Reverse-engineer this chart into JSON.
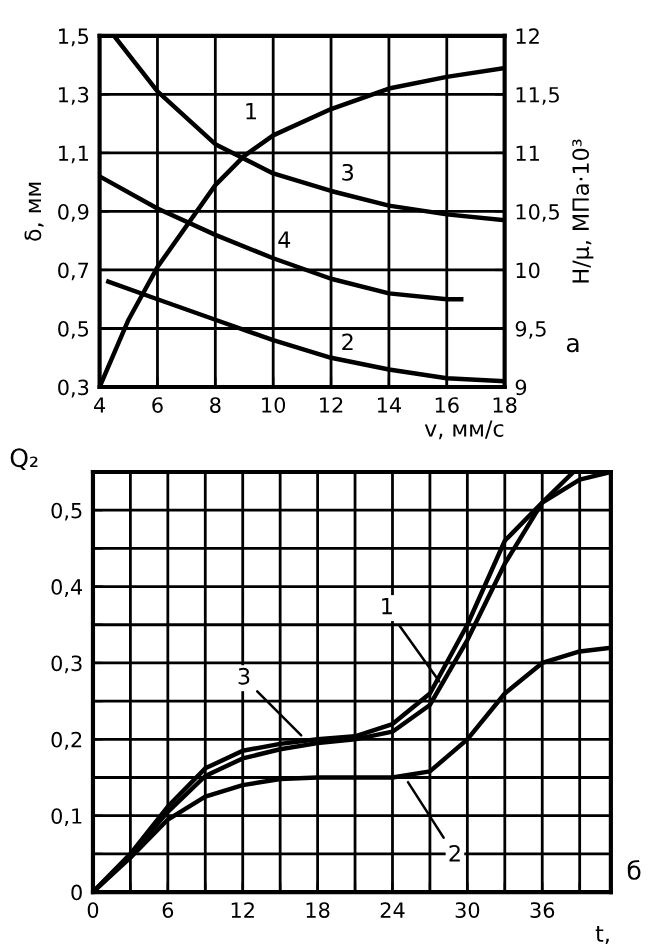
{
  "chart_data": [
    {
      "type": "line",
      "xlabel": "v, мм/с",
      "ylabel": "δ, мм",
      "y2label": "Н/μ, МПа·10³",
      "xlim": [
        4,
        18
      ],
      "xticks": [
        4,
        6,
        8,
        10,
        12,
        14,
        16,
        18
      ],
      "ylim": [
        0.3,
        1.5
      ],
      "yticks": [
        {
          "value": 0.3,
          "label": "0,3"
        },
        {
          "value": 0.5,
          "label": "0,5"
        },
        {
          "value": 0.7,
          "label": "0,7"
        },
        {
          "value": 0.9,
          "label": "0,9"
        },
        {
          "value": 1.1,
          "label": "1,1"
        },
        {
          "value": 1.3,
          "label": "1,3"
        },
        {
          "value": 1.5,
          "label": "1,5"
        }
      ],
      "y2lim": [
        9,
        12
      ],
      "y2ticks": [
        9,
        {
          "value": 9.5,
          "label": "9,5"
        },
        10,
        {
          "value": 10.5,
          "label": "10,5"
        },
        11,
        {
          "value": 11.5,
          "label": "11,5"
        },
        12
      ],
      "grid": true,
      "marker": "none",
      "line_style": "solid",
      "series": [
        {
          "color": "#000000",
          "x": [
            4,
            5,
            6,
            8,
            9,
            10,
            12,
            14,
            16,
            18
          ],
          "values": [
            0.3,
            0.53,
            0.71,
            0.99,
            1.09,
            1.16,
            1.25,
            1.32,
            1.36,
            1.39
          ]
        },
        {
          "color": "#000000",
          "x": [
            4.5,
            6,
            8,
            10,
            12,
            14,
            16,
            18
          ],
          "values": [
            1.5,
            1.31,
            1.13,
            1.03,
            0.97,
            0.92,
            0.89,
            0.87
          ]
        },
        {
          "color": "#000000",
          "x": [
            4,
            6,
            8,
            10,
            12,
            14,
            16,
            16.5
          ],
          "values": [
            1.02,
            0.91,
            0.82,
            0.74,
            0.67,
            0.62,
            0.6,
            0.6
          ]
        },
        {
          "color": "#000000",
          "x": [
            4.3,
            6,
            8,
            10,
            12,
            14,
            16,
            18
          ],
          "values": [
            0.66,
            0.6,
            0.53,
            0.46,
            0.4,
            0.36,
            0.33,
            0.32
          ]
        }
      ],
      "annotations": [
        {
          "text": "1",
          "x": 10,
          "y": 1.16
        },
        {
          "text": "3",
          "x": 12,
          "y": 0.97
        },
        {
          "text": "4",
          "x": 10,
          "y": 0.74
        },
        {
          "text": "2",
          "x": 12,
          "y": 0.4
        },
        "а"
      ]
    },
    {
      "type": "line",
      "xlabel": "t,",
      "ylabel": "Q₂",
      "xlim": [
        0,
        41.5
      ],
      "xticks": [
        0,
        {
          "value": 3,
          "label": null
        },
        6,
        {
          "value": 9,
          "label": null
        },
        12,
        {
          "value": 15,
          "label": null
        },
        18,
        {
          "value": 21,
          "label": null
        },
        24,
        {
          "value": 27,
          "label": null
        },
        30,
        {
          "value": 33,
          "label": null
        },
        36,
        {
          "value": 39,
          "label": null
        }
      ],
      "ylim": [
        0,
        0.55
      ],
      "yticks": [
        0,
        {
          "value": 0.05,
          "label": null
        },
        {
          "value": 0.1,
          "label": "0,1"
        },
        {
          "value": 0.15,
          "label": null
        },
        {
          "value": 0.2,
          "label": "0,2"
        },
        {
          "value": 0.25,
          "label": null
        },
        {
          "value": 0.3,
          "label": "0,3"
        },
        {
          "value": 0.35,
          "label": null
        },
        {
          "value": 0.4,
          "label": "0,4"
        },
        {
          "value": 0.45,
          "label": null
        },
        {
          "value": 0.5,
          "label": "0,5"
        }
      ],
      "grid": true,
      "marker": "none",
      "line_style": "solid",
      "series": [
        {
          "color": "#000000",
          "x": [
            0,
            3,
            6,
            9,
            12,
            15,
            18,
            21,
            24,
            27,
            30,
            33,
            36,
            38.5
          ],
          "values": [
            0,
            0.05,
            0.112,
            0.162,
            0.185,
            0.194,
            0.2,
            0.204,
            0.22,
            0.26,
            0.35,
            0.46,
            0.51,
            0.55
          ]
        },
        {
          "color": "#000000",
          "x": [
            0,
            3,
            6,
            9,
            12,
            15,
            18,
            21,
            24,
            27,
            30,
            33,
            36,
            39,
            41.5
          ],
          "values": [
            0,
            0.048,
            0.105,
            0.152,
            0.175,
            0.187,
            0.195,
            0.2,
            0.21,
            0.245,
            0.33,
            0.43,
            0.51,
            0.54,
            0.55
          ]
        },
        {
          "color": "#000000",
          "x": [
            0,
            3,
            6,
            9,
            12,
            15,
            18,
            21,
            24,
            27,
            30,
            33,
            36,
            39,
            41.5
          ],
          "values": [
            0,
            0.045,
            0.095,
            0.125,
            0.14,
            0.148,
            0.15,
            0.15,
            0.15,
            0.158,
            0.2,
            0.26,
            0.3,
            0.315,
            0.32
          ]
        }
      ],
      "annotations": [
        {
          "text": "1",
          "x": 28,
          "y": 0.27
        },
        {
          "text": "3",
          "x": 17,
          "y": 0.2
        },
        {
          "text": "2",
          "x": 25,
          "y": 0.15
        },
        "б"
      ]
    }
  ]
}
